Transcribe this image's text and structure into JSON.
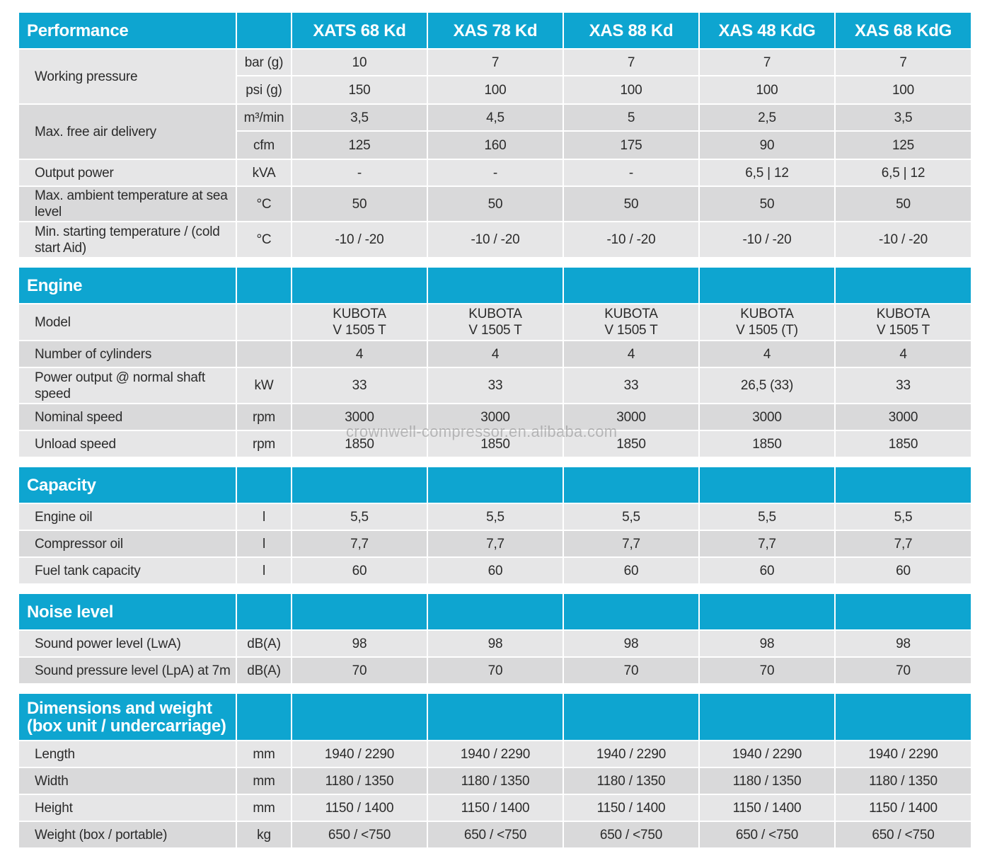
{
  "models": [
    "XATS 68 Kd",
    "XAS 78 Kd",
    "XAS 88 Kd",
    "XAS 48 KdG",
    "XAS 68 KdG"
  ],
  "performance": {
    "title": "Performance",
    "working_pressure": {
      "label": "Working pressure",
      "rows": [
        {
          "unit": "bar (g)",
          "values": [
            "10",
            "7",
            "7",
            "7",
            "7"
          ]
        },
        {
          "unit": "psi (g)",
          "values": [
            "150",
            "100",
            "100",
            "100",
            "100"
          ]
        }
      ]
    },
    "free_air": {
      "label": "Max. free air delivery",
      "rows": [
        {
          "unit": "m³/min",
          "values": [
            "3,5",
            "4,5",
            "5",
            "2,5",
            "3,5"
          ]
        },
        {
          "unit": "cfm",
          "values": [
            "125",
            "160",
            "175",
            "90",
            "125"
          ]
        }
      ]
    },
    "output_power": {
      "label": "Output power",
      "unit": "kVA",
      "values": [
        "-",
        "-",
        "-",
        "6,5 | 12",
        "6,5 | 12"
      ]
    },
    "max_ambient": {
      "label": "Max. ambient temperature at sea level",
      "unit": "°C",
      "values": [
        "50",
        "50",
        "50",
        "50",
        "50"
      ]
    },
    "min_start": {
      "label": "Min. starting temperature / (cold start Aid)",
      "unit": "°C",
      "values": [
        "-10 / -20",
        "-10 / -20",
        "-10 / -20",
        "-10 / -20",
        "-10 / -20"
      ]
    }
  },
  "engine": {
    "title": "Engine",
    "model": {
      "label": "Model",
      "unit": "",
      "values": [
        "KUBOTA\nV 1505 T",
        "KUBOTA\nV 1505 T",
        "KUBOTA\nV 1505 T",
        "KUBOTA\nV 1505 (T)",
        "KUBOTA\nV 1505 T"
      ]
    },
    "cylinders": {
      "label": "Number of cylinders",
      "unit": "",
      "values": [
        "4",
        "4",
        "4",
        "4",
        "4"
      ]
    },
    "power": {
      "label": "Power output @ normal shaft speed",
      "unit": "kW",
      "values": [
        "33",
        "33",
        "33",
        "26,5 (33)",
        "33"
      ]
    },
    "nominal": {
      "label": "Nominal speed",
      "unit": "rpm",
      "values": [
        "3000",
        "3000",
        "3000",
        "3000",
        "3000"
      ]
    },
    "unload": {
      "label": "Unload speed",
      "unit": "rpm",
      "values": [
        "1850",
        "1850",
        "1850",
        "1850",
        "1850"
      ]
    }
  },
  "capacity": {
    "title": "Capacity",
    "engine_oil": {
      "label": "Engine oil",
      "unit": "l",
      "values": [
        "5,5",
        "5,5",
        "5,5",
        "5,5",
        "5,5"
      ]
    },
    "compressor_oil": {
      "label": "Compressor oil",
      "unit": "l",
      "values": [
        "7,7",
        "7,7",
        "7,7",
        "7,7",
        "7,7"
      ]
    },
    "fuel_tank": {
      "label": "Fuel tank capacity",
      "unit": "l",
      "values": [
        "60",
        "60",
        "60",
        "60",
        "60"
      ]
    }
  },
  "noise": {
    "title": "Noise level",
    "sound_power": {
      "label": "Sound power level (LwA)",
      "unit": "dB(A)",
      "values": [
        "98",
        "98",
        "98",
        "98",
        "98"
      ]
    },
    "sound_pressure": {
      "label": "Sound pressure level (LpA) at 7m",
      "unit": "dB(A)",
      "values": [
        "70",
        "70",
        "70",
        "70",
        "70"
      ]
    }
  },
  "dimensions": {
    "title": "Dimensions and weight (box unit / undercarriage)",
    "length": {
      "label": "Length",
      "unit": "mm",
      "values": [
        "1940 / 2290",
        "1940 / 2290",
        "1940 / 2290",
        "1940 / 2290",
        "1940 / 2290"
      ]
    },
    "width": {
      "label": "Width",
      "unit": "mm",
      "values": [
        "1180 / 1350",
        "1180 / 1350",
        "1180 / 1350",
        "1180 / 1350",
        "1180 / 1350"
      ]
    },
    "height": {
      "label": "Height",
      "unit": "mm",
      "values": [
        "1150 / 1400",
        "1150 / 1400",
        "1150 / 1400",
        "1150 / 1400",
        "1150 / 1400"
      ]
    },
    "weight": {
      "label": "Weight (box / portable)",
      "unit": "kg",
      "values": [
        "650 / <750",
        "650 / <750",
        "650 / <750",
        "650 / <750",
        "650 / <750"
      ]
    }
  },
  "watermark": "crownwell-compressor.en.alibaba.com",
  "colors": {
    "header": "#0ea5d0",
    "row_grey": "#e6e6e7",
    "row_white": "#f6f6f6"
  }
}
